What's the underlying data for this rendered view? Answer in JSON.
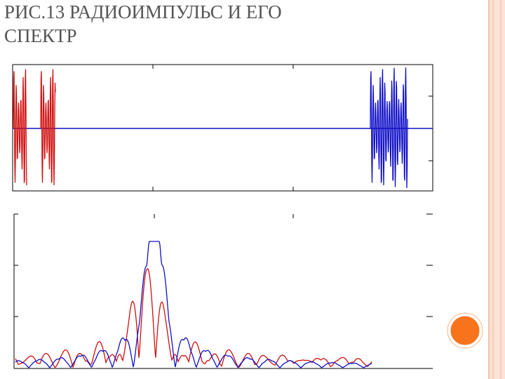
{
  "header": {
    "title_lines": [
      "РИС.13 РАДИОИМПУЛЬС И ЕГО",
      "СПЕКТР"
    ]
  }
}
